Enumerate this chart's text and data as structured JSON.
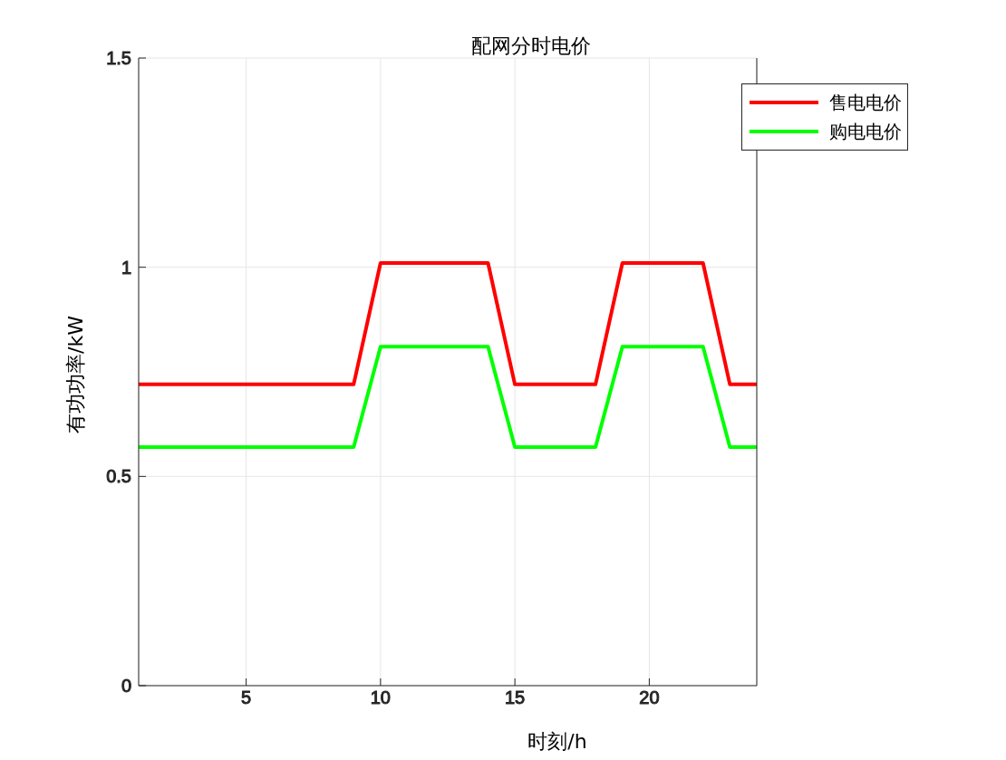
{
  "chart_data": {
    "type": "line",
    "title": "配网分时电价",
    "xlabel": "时刻/h",
    "ylabel": "有功功率/kW",
    "x": [
      1,
      2,
      3,
      4,
      5,
      6,
      7,
      8,
      9,
      10,
      11,
      12,
      13,
      14,
      15,
      16,
      17,
      18,
      19,
      20,
      21,
      22,
      23,
      24
    ],
    "series": [
      {
        "name": "售电电价",
        "color": "#ff0000",
        "values": [
          0.72,
          0.72,
          0.72,
          0.72,
          0.72,
          0.72,
          0.72,
          0.72,
          0.72,
          1.01,
          1.01,
          1.01,
          1.01,
          1.01,
          0.72,
          0.72,
          0.72,
          0.72,
          1.01,
          1.01,
          1.01,
          1.01,
          0.72,
          0.72
        ]
      },
      {
        "name": "购电电价",
        "color": "#00ff00",
        "values": [
          0.57,
          0.57,
          0.57,
          0.57,
          0.57,
          0.57,
          0.57,
          0.57,
          0.57,
          0.81,
          0.81,
          0.81,
          0.81,
          0.81,
          0.57,
          0.57,
          0.57,
          0.57,
          0.81,
          0.81,
          0.81,
          0.81,
          0.57,
          0.57
        ]
      }
    ],
    "xlim": [
      1,
      24
    ],
    "xticks": [
      5,
      10,
      15,
      20
    ],
    "ylim": [
      0,
      1.5
    ],
    "yticks": [
      0,
      0.5,
      1,
      1.5
    ],
    "grid": true,
    "legend": "top right",
    "marker": "none",
    "line_style": "solid"
  }
}
